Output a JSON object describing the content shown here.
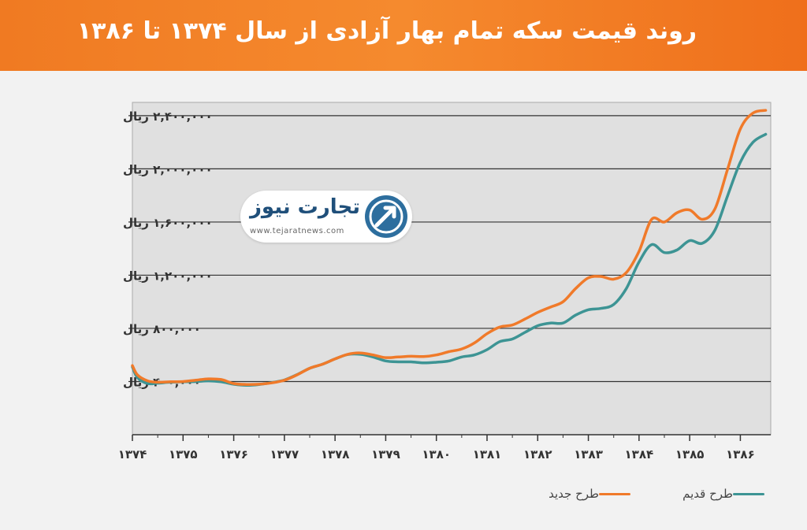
{
  "banner": {
    "title": "روند قیمت سکه تمام بهار آزادی از سال ۱۳۷۴ تا ۱۳۸۶"
  },
  "logo": {
    "name": "تجارت نیوز",
    "url": "www.tejaratnews.com"
  },
  "chart_data": {
    "type": "line",
    "title": "روند قیمت سکه تمام بهار آزادی از سال ۱۳۷۴ تا ۱۳۸۶",
    "x": [
      1374,
      1374.1,
      1374.3,
      1374.5,
      1374.75,
      1375,
      1375.25,
      1375.5,
      1375.75,
      1376,
      1376.25,
      1376.5,
      1376.75,
      1377,
      1377.25,
      1377.5,
      1377.75,
      1378,
      1378.25,
      1378.5,
      1378.75,
      1379,
      1379.25,
      1379.5,
      1379.75,
      1380,
      1380.25,
      1380.5,
      1380.75,
      1381,
      1381.25,
      1381.5,
      1381.75,
      1382,
      1382.25,
      1382.5,
      1382.75,
      1383,
      1383.25,
      1383.5,
      1383.75,
      1384,
      1384.25,
      1384.5,
      1384.75,
      1385,
      1385.25,
      1385.5,
      1385.75,
      1386,
      1386.25,
      1386.5
    ],
    "xticks": [
      {
        "value": 1374,
        "label": "۱۳۷۴"
      },
      {
        "value": 1375,
        "label": "۱۳۷۵"
      },
      {
        "value": 1376,
        "label": "۱۳۷۶"
      },
      {
        "value": 1377,
        "label": "۱۳۷۷"
      },
      {
        "value": 1378,
        "label": "۱۳۷۸"
      },
      {
        "value": 1379,
        "label": "۱۳۷۹"
      },
      {
        "value": 1380,
        "label": "۱۳۸۰"
      },
      {
        "value": 1381,
        "label": "۱۳۸۱"
      },
      {
        "value": 1382,
        "label": "۱۳۸۲"
      },
      {
        "value": 1383,
        "label": "۱۳۸۳"
      },
      {
        "value": 1384,
        "label": "۱۳۸۴"
      },
      {
        "value": 1385,
        "label": "۱۳۸۵"
      },
      {
        "value": 1386,
        "label": "۱۳۸۶"
      }
    ],
    "yticks": [
      {
        "value": 400000,
        "label": "۴۰۰,۰۰۰ ریال"
      },
      {
        "value": 800000,
        "label": "۸۰۰,۰۰۰ ریال"
      },
      {
        "value": 1200000,
        "label": "۱,۲۰۰,۰۰۰ ریال"
      },
      {
        "value": 1600000,
        "label": "۱,۶۰۰,۰۰۰ ریال"
      },
      {
        "value": 2000000,
        "label": "۲,۰۰۰,۰۰۰ ریال"
      },
      {
        "value": 2400000,
        "label": "۲,۴۰۰,۰۰۰ ریال"
      }
    ],
    "xlim": [
      1374,
      1386.6
    ],
    "ylim": [
      0,
      2500000
    ],
    "grid": true,
    "legend_position": "bottom-right",
    "series": [
      {
        "name": "طرح جدید",
        "color": "#f07a2a",
        "values": [
          520000,
          450000,
          405000,
          395000,
          398000,
          400000,
          410000,
          420000,
          415000,
          385000,
          378000,
          380000,
          390000,
          410000,
          450000,
          500000,
          530000,
          570000,
          605000,
          615000,
          600000,
          580000,
          585000,
          590000,
          588000,
          600000,
          625000,
          645000,
          690000,
          760000,
          810000,
          825000,
          870000,
          920000,
          960000,
          1000000,
          1100000,
          1180000,
          1190000,
          1170000,
          1220000,
          1380000,
          1620000,
          1600000,
          1670000,
          1690000,
          1620000,
          1700000,
          2000000,
          2300000,
          2420000,
          2440000
        ]
      },
      {
        "name": "طرح قدیم",
        "color": "#3d9494",
        "values": [
          510000,
          430000,
          385000,
          388000,
          395000,
          398000,
          400000,
          405000,
          398000,
          380000,
          372000,
          378000,
          392000,
          412000,
          452000,
          500000,
          530000,
          570000,
          603000,
          605000,
          585000,
          555000,
          548000,
          548000,
          540000,
          545000,
          555000,
          585000,
          600000,
          640000,
          700000,
          720000,
          770000,
          820000,
          840000,
          840000,
          900000,
          940000,
          950000,
          980000,
          1100000,
          1300000,
          1430000,
          1370000,
          1390000,
          1460000,
          1440000,
          1540000,
          1800000,
          2050000,
          2200000,
          2260000
        ]
      }
    ]
  }
}
